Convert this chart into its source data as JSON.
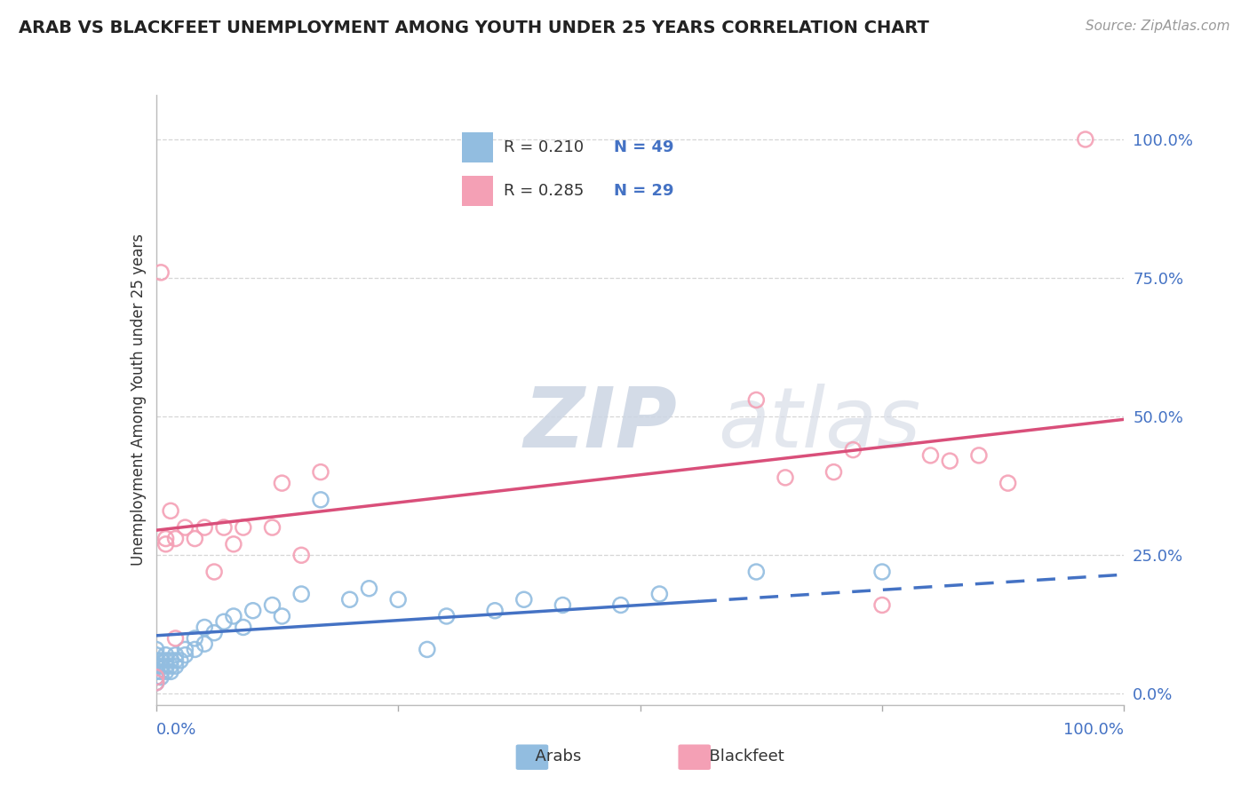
{
  "title": "ARAB VS BLACKFEET UNEMPLOYMENT AMONG YOUTH UNDER 25 YEARS CORRELATION CHART",
  "source": "Source: ZipAtlas.com",
  "ylabel": "Unemployment Among Youth under 25 years",
  "xlim": [
    0,
    1.0
  ],
  "ylim": [
    -0.02,
    1.08
  ],
  "ytick_positions": [
    0.0,
    0.25,
    0.5,
    0.75,
    1.0
  ],
  "ytick_labels": [
    "0.0%",
    "25.0%",
    "50.0%",
    "75.0%",
    "100.0%"
  ],
  "grid_color": "#cccccc",
  "background_color": "#ffffff",
  "title_color": "#222222",
  "legend_r_arab": "R = 0.210",
  "legend_n_arab": "N = 49",
  "legend_r_blackfeet": "R = 0.285",
  "legend_n_blackfeet": "N = 29",
  "arab_color": "#92bde0",
  "blackfeet_color": "#f4a0b5",
  "trendline_arab_color": "#4472c4",
  "trendline_blackfeet_color": "#d94f7a",
  "watermark_zip": "ZIP",
  "watermark_atlas": "atlas",
  "arab_x": [
    0.0,
    0.0,
    0.0,
    0.0,
    0.0,
    0.0,
    0.0,
    0.005,
    0.005,
    0.005,
    0.005,
    0.01,
    0.01,
    0.01,
    0.01,
    0.015,
    0.015,
    0.015,
    0.02,
    0.02,
    0.02,
    0.025,
    0.03,
    0.03,
    0.04,
    0.04,
    0.05,
    0.05,
    0.06,
    0.07,
    0.08,
    0.09,
    0.1,
    0.12,
    0.13,
    0.15,
    0.17,
    0.2,
    0.22,
    0.25,
    0.28,
    0.3,
    0.35,
    0.38,
    0.42,
    0.48,
    0.52,
    0.62,
    0.75
  ],
  "arab_y": [
    0.02,
    0.03,
    0.04,
    0.05,
    0.06,
    0.07,
    0.08,
    0.03,
    0.04,
    0.05,
    0.06,
    0.04,
    0.05,
    0.06,
    0.07,
    0.04,
    0.05,
    0.06,
    0.05,
    0.06,
    0.07,
    0.06,
    0.07,
    0.08,
    0.08,
    0.1,
    0.09,
    0.12,
    0.11,
    0.13,
    0.14,
    0.12,
    0.15,
    0.16,
    0.14,
    0.18,
    0.35,
    0.17,
    0.19,
    0.17,
    0.08,
    0.14,
    0.15,
    0.17,
    0.16,
    0.16,
    0.18,
    0.22,
    0.22
  ],
  "blackfeet_x": [
    0.0,
    0.0,
    0.005,
    0.01,
    0.01,
    0.015,
    0.02,
    0.03,
    0.04,
    0.05,
    0.06,
    0.07,
    0.08,
    0.09,
    0.12,
    0.13,
    0.15,
    0.17,
    0.02,
    0.62,
    0.65,
    0.7,
    0.72,
    0.75,
    0.8,
    0.82,
    0.85,
    0.88,
    0.96
  ],
  "blackfeet_y": [
    0.02,
    0.03,
    0.76,
    0.27,
    0.28,
    0.33,
    0.28,
    0.3,
    0.28,
    0.3,
    0.22,
    0.3,
    0.27,
    0.3,
    0.3,
    0.38,
    0.25,
    0.4,
    0.1,
    0.53,
    0.39,
    0.4,
    0.44,
    0.16,
    0.43,
    0.42,
    0.43,
    0.38,
    1.0
  ],
  "trendline_arab_x0": 0.0,
  "trendline_arab_x1": 1.0,
  "trendline_arab_y0": 0.105,
  "trendline_arab_y1": 0.215,
  "trendline_arab_solid_end": 0.56,
  "trendline_blackfeet_x0": 0.0,
  "trendline_blackfeet_x1": 1.0,
  "trendline_blackfeet_y0": 0.295,
  "trendline_blackfeet_y1": 0.495
}
